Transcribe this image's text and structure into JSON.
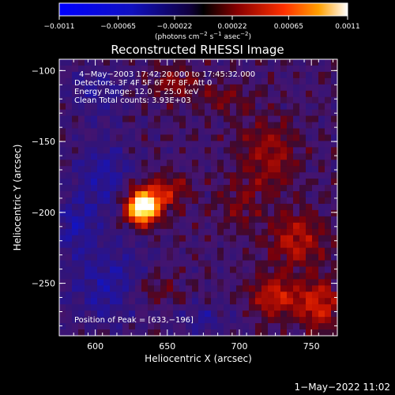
{
  "chart_data": {
    "type": "heatmap",
    "title": "Reconstructed RHESSI Image",
    "xlabel": "Heliocentric X (arcsec)",
    "ylabel": "Heliocentric  Y (arcsec)",
    "xlim": [
      575,
      768
    ],
    "ylim": [
      -287,
      -92
    ],
    "x_ticks": [
      "600",
      "650",
      "700",
      "750"
    ],
    "x_tick_values": [
      600,
      650,
      700,
      750
    ],
    "y_ticks": [
      "−100",
      "−150",
      "−200",
      "−250"
    ],
    "y_tick_values": [
      -100,
      -150,
      -200,
      -250
    ],
    "colorbar": {
      "range": [
        -0.0011,
        0.0011
      ],
      "tick_labels": [
        "−0.0011",
        "−0.00065",
        "−0.00022",
        "0.00022",
        "0.00065",
        "0.0011"
      ],
      "tick_values": [
        -0.0011,
        -0.00065,
        -0.00022,
        0.00022,
        0.00065,
        0.0011
      ],
      "unit_text": "(photons cm",
      "unit_sup1": "−2",
      "unit_mid": " s",
      "unit_sup2": "−1",
      "unit_mid2": " asec",
      "unit_sup3": "−2",
      "unit_end": ")"
    },
    "annotations": [
      "4−May−2003 17:42:20.000  to  17:45:32.000",
      "Detectors: 3F 4F 5F 6F 7F 8F, Att 0",
      "Energy Range: 12.0 − 25.0 keV",
      "Clean     Total counts: 3.93E+03"
    ],
    "peak_text": "Position of Peak = [633,−196]",
    "peak": {
      "x": 633,
      "y": -196,
      "value": 0.0011
    },
    "blobs": [
      {
        "x": 633,
        "y": -196,
        "amp": 1.35,
        "sx": 8,
        "sy": 8
      },
      {
        "x": 650,
        "y": -185,
        "amp": 0.35,
        "sx": 10,
        "sy": 8
      },
      {
        "x": 655,
        "y": -110,
        "amp": 0.25,
        "sx": 12,
        "sy": 8
      },
      {
        "x": 640,
        "y": -255,
        "amp": 0.2,
        "sx": 14,
        "sy": 10
      },
      {
        "x": 720,
        "y": -160,
        "amp": 0.3,
        "sx": 14,
        "sy": 18
      },
      {
        "x": 740,
        "y": -220,
        "amp": 0.35,
        "sx": 14,
        "sy": 14
      },
      {
        "x": 725,
        "y": -260,
        "amp": 0.45,
        "sx": 12,
        "sy": 10
      },
      {
        "x": 755,
        "y": -265,
        "amp": 0.45,
        "sx": 10,
        "sy": 12
      },
      {
        "x": 700,
        "y": -195,
        "amp": 0.2,
        "sx": 10,
        "sy": 12
      },
      {
        "x": 690,
        "y": -120,
        "amp": 0.2,
        "sx": 12,
        "sy": 8
      },
      {
        "x": 605,
        "y": -175,
        "amp": -0.25,
        "sx": 14,
        "sy": 20
      },
      {
        "x": 610,
        "y": -250,
        "amp": -0.3,
        "sx": 20,
        "sy": 20
      },
      {
        "x": 600,
        "y": -115,
        "amp": -0.2,
        "sx": 14,
        "sy": 12
      },
      {
        "x": 675,
        "y": -275,
        "amp": -0.2,
        "sx": 14,
        "sy": 8
      },
      {
        "x": 585,
        "y": -210,
        "amp": -0.25,
        "sx": 10,
        "sy": 14
      }
    ]
  },
  "footer": {
    "timestamp": "1−May−2022 11:02"
  }
}
